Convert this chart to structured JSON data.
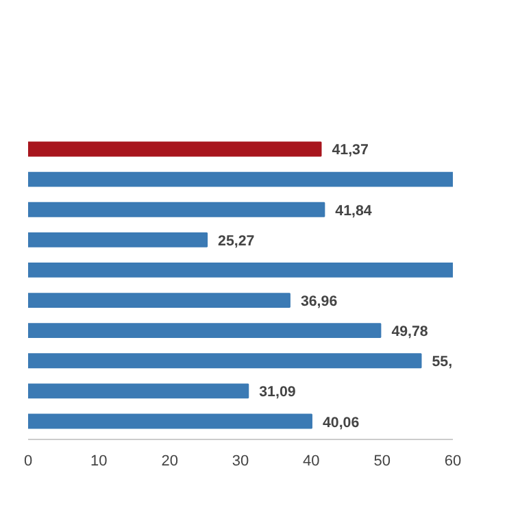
{
  "chart_data": {
    "type": "bar",
    "orientation": "horizontal",
    "categories": [
      null,
      null,
      null,
      null,
      null,
      null,
      null,
      null,
      null,
      null
    ],
    "values": [
      41.37,
      60,
      41.84,
      25.27,
      60,
      36.96,
      49.78,
      55.5,
      31.09,
      40.06
    ],
    "value_labels": [
      "41,37",
      null,
      "41,84",
      "25,27",
      null,
      "36,96",
      "49,78",
      "55,",
      "31,09",
      "40,06"
    ],
    "colors": [
      "#a8161e",
      "#3b7ab4",
      "#3b7ab4",
      "#3b7ab4",
      "#3b7ab4",
      "#3b7ab4",
      "#3b7ab4",
      "#3b7ab4",
      "#3b7ab4",
      "#3b7ab4"
    ],
    "xlim": [
      0,
      60
    ],
    "xticks": [
      0,
      10,
      20,
      30,
      40,
      50,
      60
    ],
    "grid": false
  }
}
